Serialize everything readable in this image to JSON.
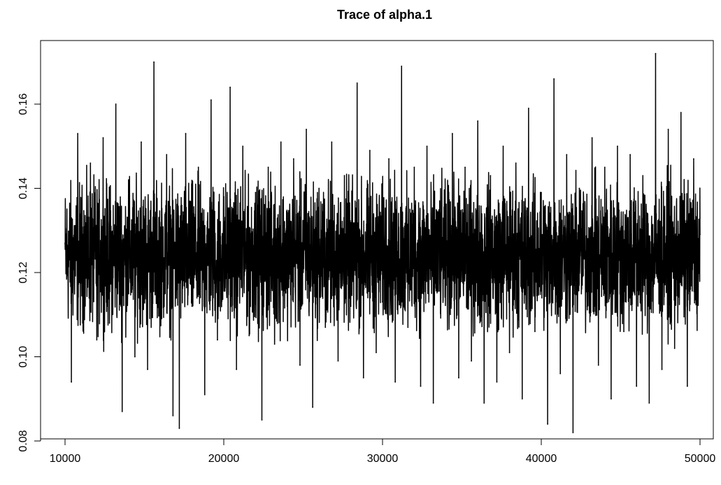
{
  "chart_data": {
    "type": "line",
    "title": "Trace of alpha.1",
    "xlabel": "",
    "ylabel": "",
    "xlim": [
      10000,
      50000
    ],
    "ylim": [
      0.08,
      0.17
    ],
    "x_ticks": [
      10000,
      20000,
      30000,
      40000,
      50000
    ],
    "x_tick_labels": [
      "10000",
      "20000",
      "30000",
      "40000",
      "50000"
    ],
    "y_ticks": [
      0.08,
      0.1,
      0.12,
      0.14,
      0.16
    ],
    "y_tick_labels": [
      "0.08",
      "0.10",
      "0.12",
      "0.14",
      "0.16"
    ],
    "grid": false,
    "legend": "none",
    "series": [
      {
        "color": "#000000",
        "x": [
          10000,
          10400,
          10800,
          11200,
          11600,
          12000,
          12400,
          12800,
          13200,
          13600,
          14000,
          14400,
          14800,
          15200,
          15600,
          16000,
          16400,
          16800,
          17200,
          17600,
          18000,
          18400,
          18800,
          19200,
          19600,
          20000,
          20400,
          20800,
          21200,
          21600,
          22000,
          22400,
          22800,
          23200,
          23600,
          24000,
          24400,
          24800,
          25200,
          25600,
          26000,
          26400,
          26800,
          27200,
          27600,
          28000,
          28400,
          28800,
          29200,
          29600,
          30000,
          30400,
          30800,
          31200,
          31600,
          32000,
          32400,
          32800,
          33200,
          33600,
          34000,
          34400,
          34800,
          35200,
          35600,
          36000,
          36400,
          36800,
          37200,
          37600,
          38000,
          38400,
          38800,
          39200,
          39600,
          40000,
          40400,
          40800,
          41200,
          41600,
          42000,
          42400,
          42800,
          43200,
          43600,
          44000,
          44400,
          44800,
          45200,
          45600,
          46000,
          46400,
          46800,
          47200,
          47600,
          48000,
          48400,
          48800,
          49200,
          49600,
          50000
        ],
        "y": [
          0.127,
          0.094,
          0.153,
          0.113,
          0.146,
          0.104,
          0.152,
          0.108,
          0.16,
          0.087,
          0.142,
          0.1,
          0.151,
          0.097,
          0.17,
          0.109,
          0.148,
          0.086,
          0.083,
          0.153,
          0.112,
          0.145,
          0.091,
          0.161,
          0.104,
          0.138,
          0.164,
          0.097,
          0.15,
          0.105,
          0.139,
          0.085,
          0.145,
          0.103,
          0.151,
          0.112,
          0.147,
          0.098,
          0.154,
          0.088,
          0.14,
          0.107,
          0.151,
          0.099,
          0.143,
          0.112,
          0.165,
          0.095,
          0.149,
          0.101,
          0.113,
          0.147,
          0.094,
          0.169,
          0.107,
          0.145,
          0.093,
          0.15,
          0.089,
          0.137,
          0.117,
          0.153,
          0.095,
          0.145,
          0.099,
          0.156,
          0.089,
          0.143,
          0.094,
          0.15,
          0.101,
          0.146,
          0.09,
          0.159,
          0.106,
          0.139,
          0.084,
          0.166,
          0.096,
          0.148,
          0.082,
          0.14,
          0.112,
          0.152,
          0.098,
          0.145,
          0.09,
          0.15,
          0.106,
          0.148,
          0.093,
          0.143,
          0.089,
          0.172,
          0.097,
          0.154,
          0.102,
          0.158,
          0.093,
          0.147,
          0.129
        ]
      }
    ]
  }
}
